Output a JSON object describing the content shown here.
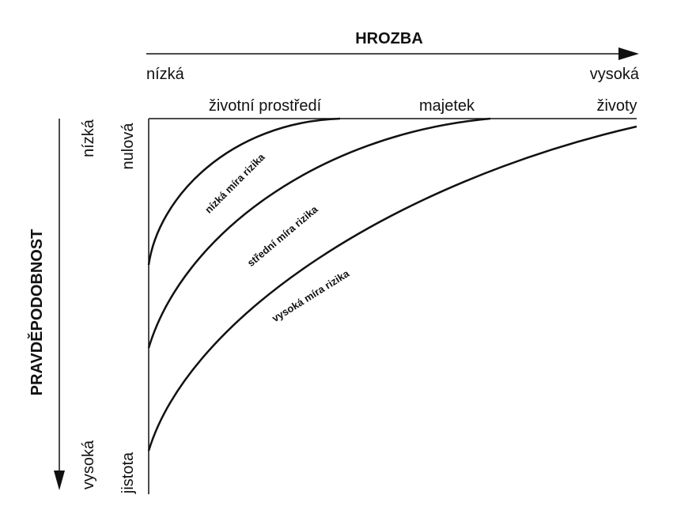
{
  "header": {
    "title": "HROZBA",
    "low": "nízká",
    "high": "vysoká"
  },
  "columns": [
    "životní prostředí",
    "majetek",
    "životy"
  ],
  "side": {
    "title": "PRAVDĚPODOBNOST",
    "low": "nízká",
    "high": "vysoká",
    "zero": "nulová",
    "certain": "jistota"
  },
  "curves": [
    "nízká míra rizika",
    "střední míra rizika",
    "vysoká míra rizika"
  ]
}
